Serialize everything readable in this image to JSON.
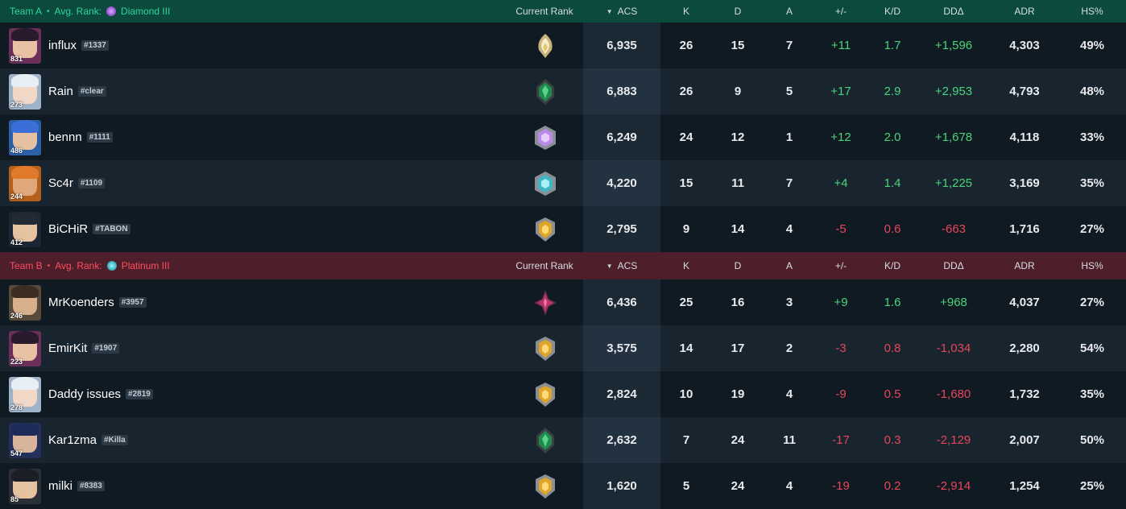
{
  "columns": {
    "current_rank": "Current Rank",
    "acs": "ACS",
    "k": "K",
    "d": "D",
    "a": "A",
    "plus_minus": "+/-",
    "kd": "K/D",
    "dd": "DDΔ",
    "adr": "ADR",
    "hs": "HS%"
  },
  "team_a": {
    "name": "Team A",
    "separator": "•",
    "avg_rank_label": "Avg. Rank:",
    "avg_rank": "Diamond III",
    "avg_rank_icon": "diamond-rank-icon",
    "color": "#2fd59b",
    "players": [
      {
        "name": "influx",
        "tag": "#1337",
        "level": "831",
        "rank_icon": "radiant-rank-icon",
        "acs": "6,935",
        "k": "26",
        "d": "15",
        "a": "7",
        "pm": "+11",
        "kd": "1.7",
        "dd": "+1,596",
        "adr": "4,303",
        "hs": "49%",
        "trend": "pos"
      },
      {
        "name": "Rain",
        "tag": "#clear",
        "level": "273",
        "rank_icon": "ascendant-rank-icon",
        "acs": "6,883",
        "k": "26",
        "d": "9",
        "a": "5",
        "pm": "+17",
        "kd": "2.9",
        "dd": "+2,953",
        "adr": "4,793",
        "hs": "48%",
        "trend": "pos"
      },
      {
        "name": "bennn",
        "tag": "#1111",
        "level": "486",
        "rank_icon": "diamond-rank-icon",
        "acs": "6,249",
        "k": "24",
        "d": "12",
        "a": "1",
        "pm": "+12",
        "kd": "2.0",
        "dd": "+1,678",
        "adr": "4,118",
        "hs": "33%",
        "trend": "pos"
      },
      {
        "name": "Sc4r",
        "tag": "#1109",
        "level": "244",
        "rank_icon": "platinum-rank-icon",
        "acs": "4,220",
        "k": "15",
        "d": "11",
        "a": "7",
        "pm": "+4",
        "kd": "1.4",
        "dd": "+1,225",
        "adr": "3,169",
        "hs": "35%",
        "trend": "pos"
      },
      {
        "name": "BiCHiR",
        "tag": "#TABON",
        "level": "412",
        "rank_icon": "gold-rank-icon",
        "acs": "2,795",
        "k": "9",
        "d": "14",
        "a": "4",
        "pm": "-5",
        "kd": "0.6",
        "dd": "-663",
        "adr": "1,716",
        "hs": "27%",
        "trend": "neg"
      }
    ]
  },
  "team_b": {
    "name": "Team B",
    "separator": "•",
    "avg_rank_label": "Avg. Rank:",
    "avg_rank": "Platinum III",
    "avg_rank_icon": "platinum-rank-icon",
    "color": "#ff4d61",
    "players": [
      {
        "name": "MrKoenders",
        "tag": "#3957",
        "level": "246",
        "rank_icon": "immortal-rank-icon",
        "acs": "6,436",
        "k": "25",
        "d": "16",
        "a": "3",
        "pm": "+9",
        "kd": "1.6",
        "dd": "+968",
        "adr": "4,037",
        "hs": "27%",
        "trend": "pos"
      },
      {
        "name": "EmirKit",
        "tag": "#1907",
        "level": "223",
        "rank_icon": "gold-rank-icon",
        "acs": "3,575",
        "k": "14",
        "d": "17",
        "a": "2",
        "pm": "-3",
        "kd": "0.8",
        "dd": "-1,034",
        "adr": "2,280",
        "hs": "54%",
        "trend": "neg"
      },
      {
        "name": "Daddy issues",
        "tag": "#2819",
        "level": "278",
        "rank_icon": "gold-rank-icon",
        "acs": "2,824",
        "k": "10",
        "d": "19",
        "a": "4",
        "pm": "-9",
        "kd": "0.5",
        "dd": "-1,680",
        "adr": "1,732",
        "hs": "35%",
        "trend": "neg"
      },
      {
        "name": "Kar1zma",
        "tag": "#Killa",
        "level": "547",
        "rank_icon": "ascendant-rank-icon",
        "acs": "2,632",
        "k": "7",
        "d": "24",
        "a": "11",
        "pm": "-17",
        "kd": "0.3",
        "dd": "-2,129",
        "adr": "2,007",
        "hs": "50%",
        "trend": "neg"
      },
      {
        "name": "milki",
        "tag": "#8383",
        "level": "85",
        "rank_icon": "gold-rank-icon",
        "acs": "1,620",
        "k": "5",
        "d": "24",
        "a": "4",
        "pm": "-19",
        "kd": "0.2",
        "dd": "-2,914",
        "adr": "1,254",
        "hs": "25%",
        "trend": "neg"
      }
    ]
  },
  "colors": {
    "positive": "#4cd37a",
    "negative": "#e8465a",
    "team_a_header_bg": "#0c4a3e",
    "team_b_header_bg": "#4e1f2a"
  }
}
